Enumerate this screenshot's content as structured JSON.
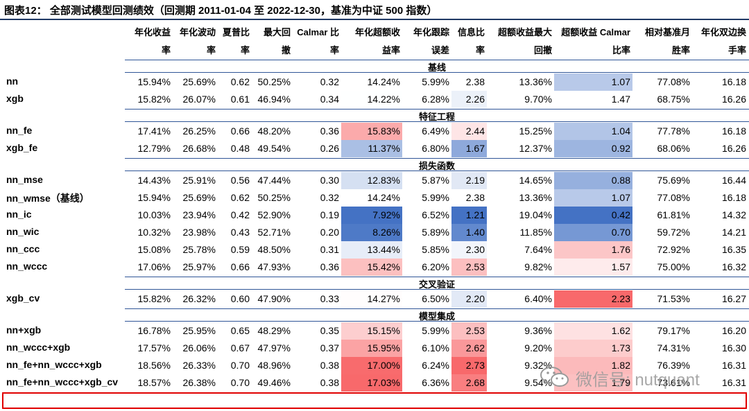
{
  "title": "图表12： 全部测试模型回测绩效（回测期 2011-01-04 至 2022-12-30，基准为中证 500 指数）",
  "columns": [
    {
      "l1": "年化收益",
      "l2": "率"
    },
    {
      "l1": "年化波动",
      "l2": "率"
    },
    {
      "l1": "夏普比",
      "l2": "率"
    },
    {
      "l1": "最大回",
      "l2": "撤"
    },
    {
      "l1": "Calmar 比",
      "l2": "率"
    },
    {
      "l1": "年化超额收",
      "l2": "益率"
    },
    {
      "l1": "年化跟踪",
      "l2": "误差"
    },
    {
      "l1": "信息比",
      "l2": "率"
    },
    {
      "l1": "超额收益最大",
      "l2": "回撤"
    },
    {
      "l1": "超额收益 Calmar",
      "l2": "比率"
    },
    {
      "l1": "相对基准月",
      "l2": "胜率"
    },
    {
      "l1": "年化双边换",
      "l2": "手率"
    }
  ],
  "sections": [
    {
      "name": "基线",
      "rows": [
        {
          "label": "nn",
          "values": [
            "15.94%",
            "25.69%",
            "0.62",
            "50.25%",
            "0.32",
            "14.24%",
            "5.99%",
            "2.38",
            "13.36%",
            "1.07",
            "77.08%",
            "16.18"
          ]
        },
        {
          "label": "xgb",
          "values": [
            "15.82%",
            "26.07%",
            "0.61",
            "46.94%",
            "0.34",
            "14.22%",
            "6.28%",
            "2.26",
            "9.70%",
            "1.47",
            "68.75%",
            "16.26"
          ]
        }
      ]
    },
    {
      "name": "特征工程",
      "rows": [
        {
          "label": "nn_fe",
          "values": [
            "17.41%",
            "26.25%",
            "0.66",
            "48.20%",
            "0.36",
            "15.83%",
            "6.49%",
            "2.44",
            "15.25%",
            "1.04",
            "77.78%",
            "16.18"
          ]
        },
        {
          "label": "xgb_fe",
          "values": [
            "12.79%",
            "26.68%",
            "0.48",
            "49.54%",
            "0.26",
            "11.37%",
            "6.80%",
            "1.67",
            "12.37%",
            "0.92",
            "68.06%",
            "16.26"
          ]
        }
      ]
    },
    {
      "name": "损失函数",
      "rows": [
        {
          "label": "nn_mse",
          "values": [
            "14.43%",
            "25.91%",
            "0.56",
            "47.44%",
            "0.30",
            "12.83%",
            "5.87%",
            "2.19",
            "14.65%",
            "0.88",
            "75.69%",
            "16.44"
          ]
        },
        {
          "label": "nn_wmse（基线）",
          "values": [
            "15.94%",
            "25.69%",
            "0.62",
            "50.25%",
            "0.32",
            "14.24%",
            "5.99%",
            "2.38",
            "13.36%",
            "1.07",
            "77.08%",
            "16.18"
          ]
        },
        {
          "label": "nn_ic",
          "values": [
            "10.03%",
            "23.94%",
            "0.42",
            "52.90%",
            "0.19",
            "7.92%",
            "6.52%",
            "1.21",
            "19.04%",
            "0.42",
            "61.81%",
            "14.32"
          ]
        },
        {
          "label": "nn_wic",
          "values": [
            "10.32%",
            "23.98%",
            "0.43",
            "52.71%",
            "0.20",
            "8.26%",
            "5.89%",
            "1.40",
            "11.85%",
            "0.70",
            "59.72%",
            "14.21"
          ]
        },
        {
          "label": "nn_ccc",
          "values": [
            "15.08%",
            "25.78%",
            "0.59",
            "48.50%",
            "0.31",
            "13.44%",
            "5.85%",
            "2.30",
            "7.64%",
            "1.76",
            "72.92%",
            "16.35"
          ]
        },
        {
          "label": "nn_wccc",
          "values": [
            "17.06%",
            "25.97%",
            "0.66",
            "47.93%",
            "0.36",
            "15.42%",
            "6.20%",
            "2.53",
            "9.82%",
            "1.57",
            "75.00%",
            "16.32"
          ]
        }
      ]
    },
    {
      "name": "交叉验证",
      "rows": [
        {
          "label": "xgb_cv",
          "values": [
            "15.82%",
            "26.32%",
            "0.60",
            "47.90%",
            "0.33",
            "14.27%",
            "6.50%",
            "2.20",
            "6.40%",
            "2.23",
            "71.53%",
            "16.27"
          ]
        }
      ]
    },
    {
      "name": "模型集成",
      "rows": [
        {
          "label": "nn+xgb",
          "values": [
            "16.78%",
            "25.95%",
            "0.65",
            "48.29%",
            "0.35",
            "15.15%",
            "5.99%",
            "2.53",
            "9.36%",
            "1.62",
            "79.17%",
            "16.20"
          ]
        },
        {
          "label": "nn_wccc+xgb",
          "values": [
            "17.57%",
            "26.06%",
            "0.67",
            "47.97%",
            "0.37",
            "15.95%",
            "6.10%",
            "2.62",
            "9.20%",
            "1.73",
            "74.31%",
            "16.30"
          ]
        },
        {
          "label": "nn_fe+nn_wccc+xgb",
          "values": [
            "18.56%",
            "26.33%",
            "0.70",
            "48.96%",
            "0.38",
            "17.00%",
            "6.24%",
            "2.73",
            "9.32%",
            "1.82",
            "76.39%",
            "16.31"
          ]
        },
        {
          "label": "nn_fe+nn_wccc+xgb_cv",
          "values": [
            "18.57%",
            "26.38%",
            "0.70",
            "49.46%",
            "0.38",
            "17.03%",
            "6.36%",
            "2.68",
            "9.54%",
            "1.79",
            "73.61%",
            "16.31"
          ]
        }
      ]
    }
  ],
  "heat": {
    "low_color": "#4472c4",
    "mid_color": "#ffffff",
    "high_color": "#f8696b",
    "columns_colored": [
      "年化超额收益率",
      "信息比率",
      "超额收益 Calmar 比率"
    ]
  },
  "highlighted_row": "nn_fe+nn_wccc+xgb_cv",
  "watermark": "微信号: nutquant"
}
